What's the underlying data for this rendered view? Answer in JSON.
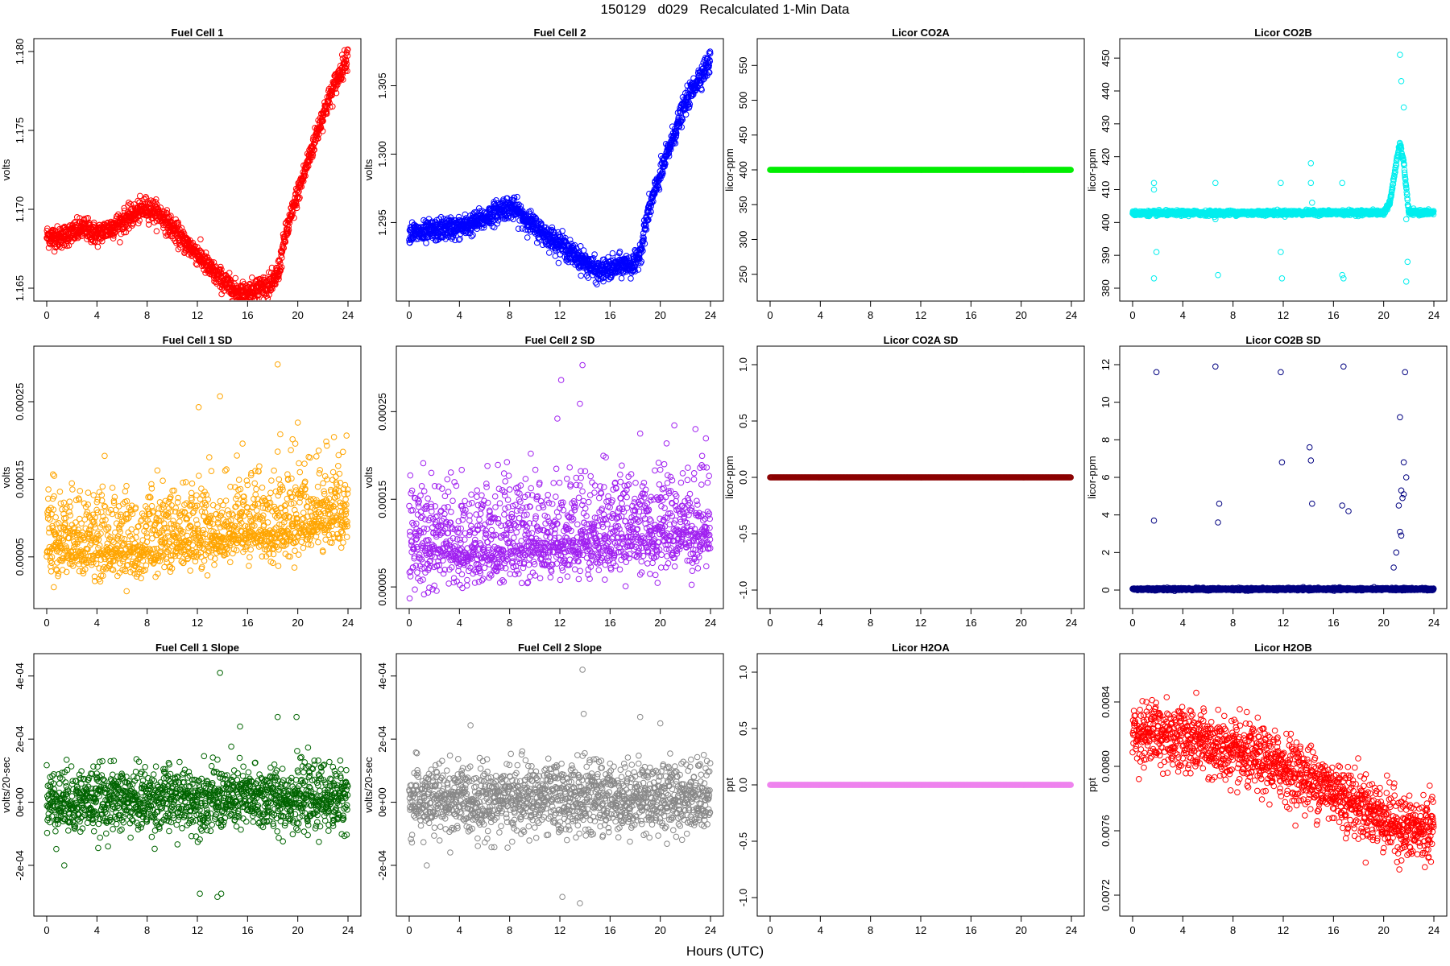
{
  "title": "150129   d029   Recalculated 1-Min Data",
  "xlabel": "Hours (UTC)",
  "colors": {
    "fuel_cell_1": "#ff0000",
    "fuel_cell_2": "#0000ff",
    "licor_co2a": "#00ee00",
    "licor_co2b": "#00eeee",
    "fuel_cell_1_sd": "#ffa500",
    "fuel_cell_2_sd": "#a020f0",
    "licor_co2a_sd": "#8b0000",
    "licor_co2b_sd": "#000080",
    "fuel_cell_1_slope": "#006400",
    "fuel_cell_2_slope": "#888888",
    "licor_h2oa": "#ee82ee",
    "licor_h2ob": "#ff0000"
  },
  "chart_data": [
    {
      "id": "fuel-cell-1",
      "type": "scatter",
      "title": "Fuel Cell 1",
      "ylabel": "volts",
      "xlim": [
        0,
        24
      ],
      "ylim": [
        1.165,
        1.18
      ],
      "xticks": [
        "0",
        "4",
        "8",
        "12",
        "16",
        "20",
        "24"
      ],
      "yticks": [
        [
          1.165,
          "1.165"
        ],
        [
          1.17,
          "1.170"
        ],
        [
          1.175,
          "1.175"
        ],
        [
          1.18,
          "1.180"
        ]
      ],
      "color": "#ff0000",
      "series": [
        {
          "x": [
            0,
            1,
            2,
            3,
            4,
            5,
            6,
            7,
            7.5,
            8,
            8.5,
            9,
            10,
            11,
            12,
            13,
            14,
            15,
            16,
            17,
            18,
            18.5,
            19,
            20,
            21,
            22,
            23,
            24
          ],
          "y": [
            1.1683,
            1.1682,
            1.1685,
            1.1688,
            1.1684,
            1.1688,
            1.1692,
            1.1697,
            1.1699,
            1.1701,
            1.1699,
            1.1697,
            1.1688,
            1.1679,
            1.1672,
            1.1662,
            1.1655,
            1.1648,
            1.1647,
            1.1651,
            1.1652,
            1.1662,
            1.1683,
            1.171,
            1.1735,
            1.176,
            1.178,
            1.1798
          ]
        }
      ],
      "scatter_noise": 0.00035
    },
    {
      "id": "fuel-cell-2",
      "type": "scatter",
      "title": "Fuel Cell 2",
      "ylabel": "volts",
      "xlim": [
        0,
        24
      ],
      "ylim": [
        1.2902,
        1.3075
      ],
      "xticks": [
        "0",
        "4",
        "8",
        "12",
        "16",
        "20",
        "24"
      ],
      "yticks": [
        [
          1.295,
          "1.295"
        ],
        [
          1.3,
          "1.300"
        ],
        [
          1.305,
          "1.305"
        ]
      ],
      "color": "#0000ff",
      "series": [
        {
          "x": [
            0,
            1,
            2,
            3,
            4,
            5,
            6,
            7,
            7.5,
            8,
            8.5,
            9,
            10,
            11,
            12,
            13,
            14,
            15,
            16,
            17,
            18,
            18.5,
            19,
            20,
            21,
            22,
            23,
            24
          ],
          "y": [
            1.2943,
            1.2942,
            1.2944,
            1.2946,
            1.2946,
            1.2949,
            1.2953,
            1.2958,
            1.2961,
            1.2961,
            1.2959,
            1.2955,
            1.2947,
            1.294,
            1.2935,
            1.2927,
            1.2921,
            1.2914,
            1.2916,
            1.2919,
            1.2919,
            1.2932,
            1.2956,
            1.2985,
            1.3012,
            1.3037,
            1.3055,
            1.3068
          ]
        }
      ],
      "scatter_noise": 0.0004
    },
    {
      "id": "licor-co2a",
      "type": "scatter",
      "title": "Licor CO2A",
      "ylabel": "licor-ppm",
      "xlim": [
        0,
        24
      ],
      "ylim": [
        230,
        570
      ],
      "xticks": [
        "0",
        "4",
        "8",
        "12",
        "16",
        "20",
        "24"
      ],
      "yticks": [
        [
          250,
          "250"
        ],
        [
          300,
          "300"
        ],
        [
          350,
          "350"
        ],
        [
          400,
          "400"
        ],
        [
          450,
          "450"
        ],
        [
          500,
          "500"
        ],
        [
          550,
          "550"
        ]
      ],
      "color": "#00ee00",
      "series": [
        {
          "x": [
            0,
            24
          ],
          "y": [
            400,
            400
          ]
        }
      ],
      "scatter_noise": 0
    },
    {
      "id": "licor-co2b",
      "type": "scatter",
      "title": "Licor CO2B",
      "ylabel": "licor-ppm",
      "xlim": [
        0,
        24
      ],
      "ylim": [
        380,
        452
      ],
      "xticks": [
        "0",
        "4",
        "8",
        "12",
        "16",
        "20",
        "24"
      ],
      "yticks": [
        [
          380,
          "380"
        ],
        [
          390,
          "390"
        ],
        [
          400,
          "400"
        ],
        [
          410,
          "410"
        ],
        [
          420,
          "420"
        ],
        [
          430,
          "430"
        ],
        [
          440,
          "440"
        ],
        [
          450,
          "450"
        ]
      ],
      "color": "#00eeee",
      "series": [
        {
          "x": [
            0,
            20,
            20.5,
            21,
            21.3,
            21.6,
            22,
            24
          ],
          "y": [
            402.8,
            403.0,
            406,
            418,
            424,
            418,
            403,
            403
          ]
        }
      ],
      "outliers": {
        "x": [
          1.7,
          1.7,
          1.9,
          1.7,
          6.6,
          6.8,
          6.6,
          11.8,
          11.9,
          11.8,
          14.2,
          14.2,
          14.3,
          16.7,
          16.8,
          16.7,
          21.3,
          21.4,
          21.6,
          21.8,
          21.9,
          21.8
        ],
        "y": [
          412,
          383,
          391,
          410,
          412,
          384,
          401,
          412,
          383,
          391,
          418,
          412,
          406,
          412,
          383,
          384,
          451,
          443,
          435,
          382,
          388,
          401
        ]
      },
      "scatter_noise": 0.35
    },
    {
      "id": "fuel-cell-1-sd",
      "type": "scatter",
      "title": "Fuel Cell 1 SD",
      "ylabel": "volts",
      "xlim": [
        0,
        24
      ],
      "ylim": [
        0.0,
        0.000305
      ],
      "xticks": [
        "0",
        "4",
        "8",
        "12",
        "16",
        "20",
        "24"
      ],
      "yticks": [
        [
          5e-05,
          "0.00005"
        ],
        [
          0.00015,
          "0.00015"
        ],
        [
          0.00025,
          "0.00025"
        ]
      ],
      "color": "#ffa500",
      "series": [
        {
          "x": [
            0,
            6,
            10,
            14,
            16,
            18,
            20,
            24
          ],
          "y": [
            6.5e-05,
            6e-05,
            7.2e-05,
            8e-05,
            8.5e-05,
            8.5e-05,
            9.5e-05,
            0.000105
          ]
        }
      ],
      "outliers": {
        "x": [
          12.1,
          13.8,
          18.4,
          18.6,
          20.0,
          19.8,
          15.6
        ],
        "y": [
          0.000243,
          0.000257,
          0.000298,
          0.000208,
          0.000223,
          0.000196,
          0.000196
        ]
      },
      "scatter_noise": 3e-05
    },
    {
      "id": "fuel-cell-2-sd",
      "type": "scatter",
      "title": "Fuel Cell 2 SD",
      "ylabel": "volts",
      "xlim": [
        0,
        24
      ],
      "ylim": [
        4e-05,
        0.00031
      ],
      "xticks": [
        "0",
        "4",
        "8",
        "12",
        "16",
        "20",
        "24"
      ],
      "yticks": [
        [
          5e-05,
          "0.00005"
        ],
        [
          0.00015,
          "0.00015"
        ],
        [
          0.00025,
          "0.00025"
        ]
      ],
      "color": "#a020f0",
      "series": [
        {
          "x": [
            0,
            6,
            10,
            14,
            18,
            22,
            24
          ],
          "y": [
            9.5e-05,
            9.5e-05,
            0.0001,
            0.000105,
            0.00011,
            0.000115,
            0.00012
          ]
        }
      ],
      "outliers": {
        "x": [
          12.1,
          11.8,
          13.6,
          13.8,
          18.4,
          22.8
        ],
        "y": [
          0.000286,
          0.000242,
          0.000259,
          0.000303,
          0.000225,
          0.00023
        ]
      },
      "scatter_noise": 3.2e-05
    },
    {
      "id": "licor-co2a-sd",
      "type": "scatter",
      "title": "Licor CO2A SD",
      "ylabel": "licor-ppm",
      "xlim": [
        0,
        24
      ],
      "ylim": [
        -1.05,
        1.05
      ],
      "xticks": [
        "0",
        "4",
        "8",
        "12",
        "16",
        "20",
        "24"
      ],
      "yticks": [
        [
          -1.0,
          "-1.0"
        ],
        [
          -0.5,
          "-0.5"
        ],
        [
          0.0,
          "0.0"
        ],
        [
          0.5,
          "0.5"
        ],
        [
          1.0,
          "1.0"
        ]
      ],
      "color": "#8b0000",
      "series": [
        {
          "x": [
            0,
            24
          ],
          "y": [
            0,
            0
          ]
        }
      ],
      "scatter_noise": 0
    },
    {
      "id": "licor-co2b-sd",
      "type": "scatter",
      "title": "Licor CO2B SD",
      "ylabel": "licor-ppm",
      "xlim": [
        0,
        24
      ],
      "ylim": [
        -0.3,
        12.3
      ],
      "xticks": [
        "0",
        "4",
        "8",
        "12",
        "16",
        "20",
        "24"
      ],
      "yticks": [
        [
          0,
          "0"
        ],
        [
          2,
          "2"
        ],
        [
          4,
          "4"
        ],
        [
          6,
          "6"
        ],
        [
          8,
          "8"
        ],
        [
          10,
          "10"
        ],
        [
          12,
          "12"
        ]
      ],
      "color": "#000080",
      "series": [
        {
          "x": [
            0,
            24
          ],
          "y": [
            0.05,
            0.05
          ]
        }
      ],
      "outliers": {
        "x": [
          1.7,
          1.9,
          6.6,
          6.8,
          6.9,
          11.8,
          11.9,
          14.1,
          14.2,
          14.3,
          16.8,
          16.7,
          17.2,
          21.3,
          21.4,
          21.6,
          21.8,
          21.6,
          21.2,
          21.5,
          21.4,
          21.0,
          20.8,
          21.7,
          21.3
        ],
        "y": [
          3.7,
          11.6,
          11.9,
          3.6,
          4.6,
          11.6,
          6.8,
          7.6,
          6.9,
          4.6,
          11.9,
          4.5,
          4.2,
          9.2,
          5.3,
          5.1,
          6.0,
          6.8,
          4.5,
          4.9,
          2.9,
          2.0,
          1.2,
          11.6,
          3.1
        ]
      },
      "scatter_noise": 0.03
    },
    {
      "id": "fuel-cell-1-slope",
      "type": "scatter",
      "title": "Fuel Cell 1 Slope",
      "ylabel": "volts/20-sec",
      "xlim": [
        0,
        24
      ],
      "ylim": [
        -0.00032,
        0.00043
      ],
      "xticks": [
        "0",
        "4",
        "8",
        "12",
        "16",
        "20",
        "24"
      ],
      "yticks": [
        [
          -0.0002,
          "-2e-04"
        ],
        [
          0,
          "0e+00"
        ],
        [
          0.0002,
          "2e-04"
        ],
        [
          0.0004,
          "4e-04"
        ]
      ],
      "color": "#006400",
      "series": [
        {
          "x": [
            0,
            24
          ],
          "y": [
            5e-06,
            1.5e-05
          ]
        }
      ],
      "outliers": {
        "x": [
          13.8,
          13.6,
          12.2,
          13.9,
          18.4,
          19.9,
          15.4,
          1.4
        ],
        "y": [
          0.00041,
          -0.0003,
          -0.00029,
          -0.00029,
          0.00027,
          0.00027,
          0.00024,
          -0.0002
        ]
      },
      "scatter_noise": 5e-05
    },
    {
      "id": "fuel-cell-2-slope",
      "type": "scatter",
      "title": "Fuel Cell 2 Slope",
      "ylabel": "volts/20-sec",
      "xlim": [
        0,
        24
      ],
      "ylim": [
        -0.00032,
        0.00043
      ],
      "xticks": [
        "0",
        "4",
        "8",
        "12",
        "16",
        "20",
        "24"
      ],
      "yticks": [
        [
          -0.0002,
          "-2e-04"
        ],
        [
          0,
          "0e+00"
        ],
        [
          0.0002,
          "2e-04"
        ],
        [
          0.0004,
          "4e-04"
        ]
      ],
      "color": "#888888",
      "series": [
        {
          "x": [
            0,
            24
          ],
          "y": [
            5e-06,
            2e-05
          ]
        }
      ],
      "outliers": {
        "x": [
          13.8,
          13.6,
          12.2,
          13.9,
          18.4,
          20.0,
          1.4
        ],
        "y": [
          0.00042,
          -0.00032,
          -0.0003,
          0.00028,
          0.00027,
          0.00025,
          -0.0002
        ]
      },
      "scatter_noise": 5.5e-05
    },
    {
      "id": "licor-h2oa",
      "type": "scatter",
      "title": "Licor H2OA",
      "ylabel": "ppt",
      "xlim": [
        0,
        24
      ],
      "ylim": [
        -1.05,
        1.05
      ],
      "xticks": [
        "0",
        "4",
        "8",
        "12",
        "16",
        "20",
        "24"
      ],
      "yticks": [
        [
          -1.0,
          "-1.0"
        ],
        [
          -0.5,
          "-0.5"
        ],
        [
          0.0,
          "0.0"
        ],
        [
          0.5,
          "0.5"
        ],
        [
          1.0,
          "1.0"
        ]
      ],
      "color": "#ee82ee",
      "series": [
        {
          "x": [
            0,
            24
          ],
          "y": [
            0,
            0
          ]
        }
      ],
      "scatter_noise": 0
    },
    {
      "id": "licor-h2ob",
      "type": "scatter",
      "title": "Licor H2OB",
      "ylabel": "ppt",
      "xlim": [
        0,
        24
      ],
      "ylim": [
        0.00715,
        0.00862
      ],
      "xticks": [
        "0",
        "4",
        "8",
        "12",
        "16",
        "20",
        "24"
      ],
      "yticks": [
        [
          0.0072,
          "0.0072"
        ],
        [
          0.0076,
          "0.0076"
        ],
        [
          0.008,
          "0.0080"
        ],
        [
          0.0084,
          "0.0084"
        ]
      ],
      "color": "#ff0000",
      "series": [
        {
          "x": [
            0,
            4,
            8,
            12,
            16,
            20,
            22,
            24
          ],
          "y": [
            0.00822,
            0.00818,
            0.00808,
            0.008,
            0.00785,
            0.00768,
            0.0076,
            0.00762
          ]
        }
      ],
      "scatter_noise": 0.0001
    }
  ]
}
